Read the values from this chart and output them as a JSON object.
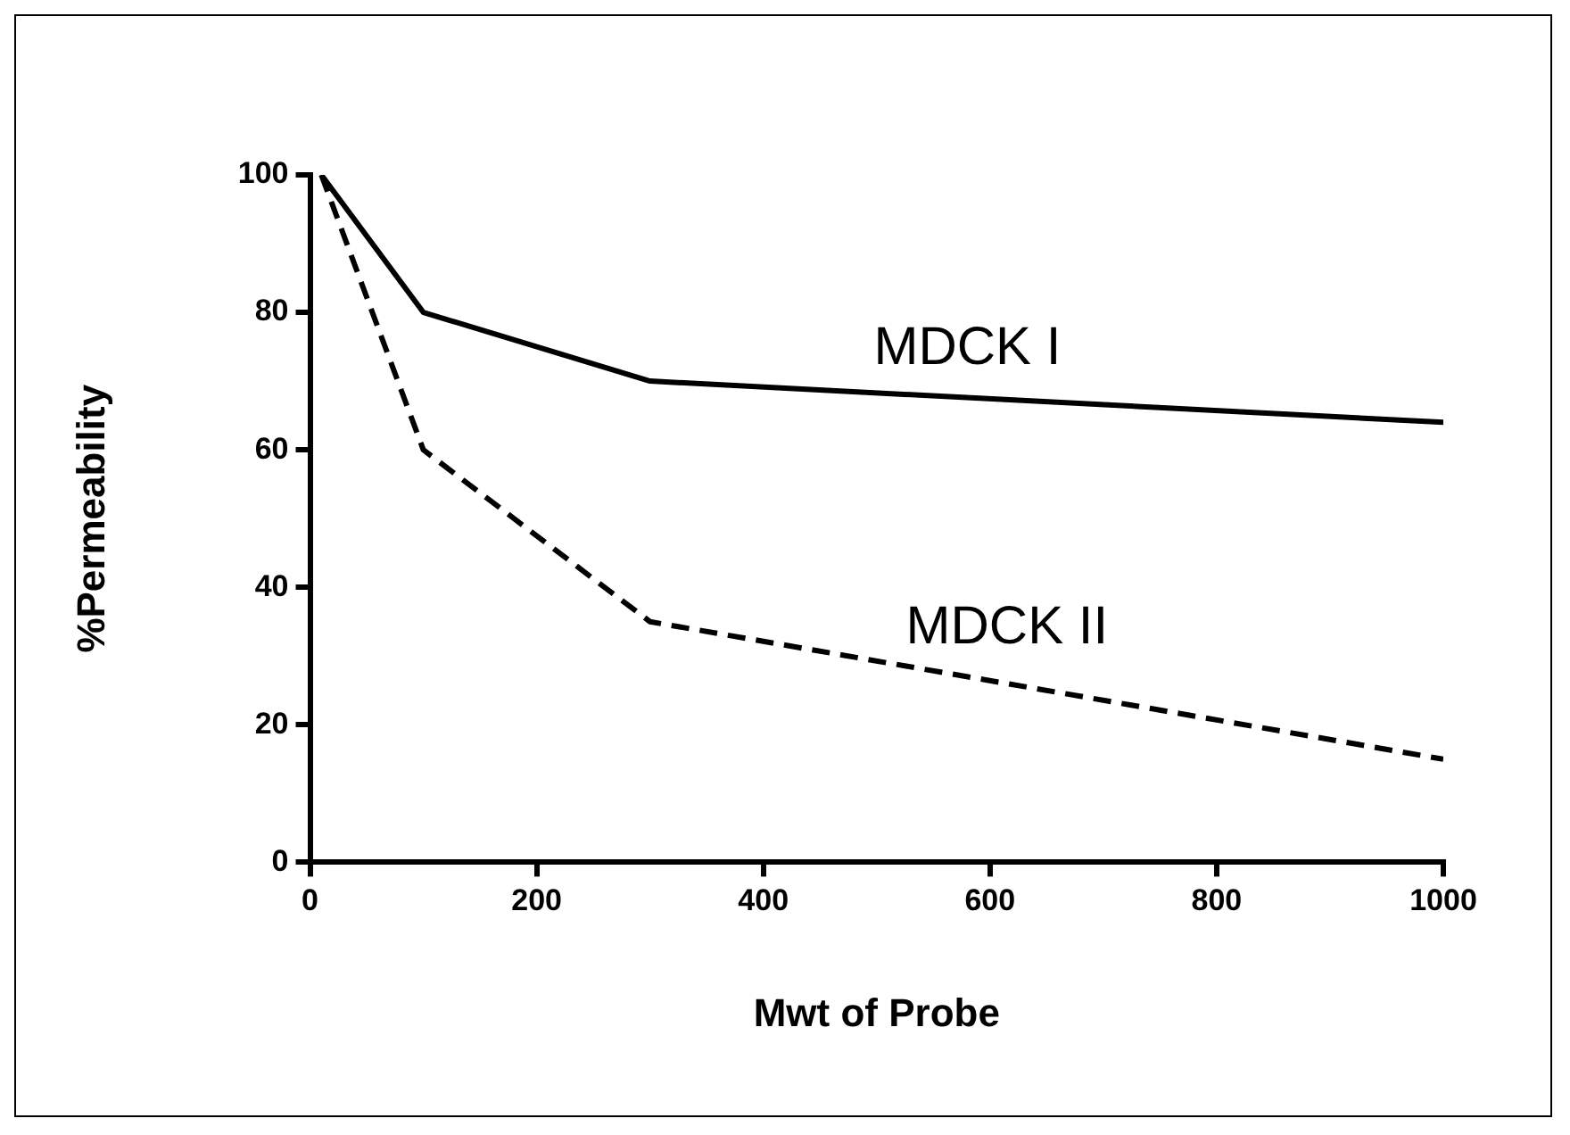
{
  "chart_data": {
    "type": "line",
    "xlabel": "Mwt of Probe",
    "ylabel": "%Permeability",
    "xlim": [
      0,
      1000
    ],
    "xticks": [
      0,
      200,
      400,
      600,
      800,
      1000
    ],
    "ylim": [
      0,
      100
    ],
    "yticks": [
      0,
      20,
      40,
      60,
      80,
      100
    ],
    "grid": false,
    "legend": false,
    "marker": "none",
    "series": [
      {
        "name": "MDCK I",
        "color": "#000000",
        "line_style": "solid",
        "x": [
          10,
          100,
          300,
          1000
        ],
        "values": [
          100,
          80,
          70,
          64
        ]
      },
      {
        "name": "MDCK II",
        "color": "#000000",
        "line_style": "dashed",
        "x": [
          10,
          100,
          300,
          1000
        ],
        "values": [
          100,
          60,
          35,
          15
        ]
      }
    ]
  }
}
